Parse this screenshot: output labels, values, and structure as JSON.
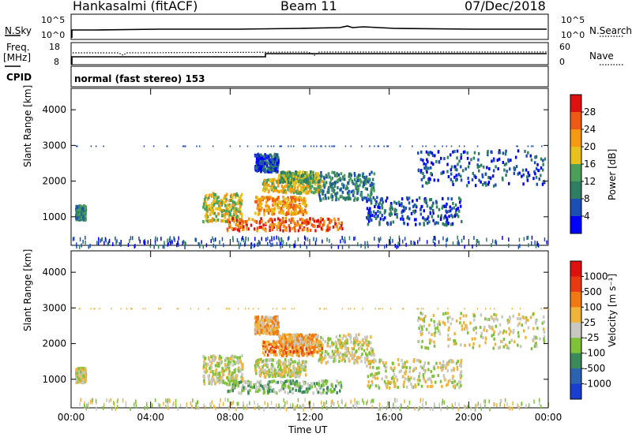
{
  "header": {
    "station": "Hankasalmi (fitACF)",
    "beam": "Beam 11",
    "date": "07/Dec/2018"
  },
  "noise_panel": {
    "left_label": "N.Sky",
    "left_ticks": [
      "10^5",
      "10^0"
    ],
    "right_label": "N.Search",
    "right_ticks": [
      "10^5",
      "10^0"
    ]
  },
  "freq_panel": {
    "left_label_1": "Freq.",
    "left_label_2": "[MHz]",
    "left_ticks": [
      "18",
      "8"
    ],
    "right_label": "Nave",
    "right_ticks": [
      "60",
      "0"
    ],
    "cpid_label": "CPID",
    "cpid_text": "normal (fast stereo) 153"
  },
  "chart_data": [
    {
      "type": "heatmap",
      "name": "power",
      "ylabel": "Slant Range [km]",
      "xlabel": "",
      "x_ticks": [
        "00:00",
        "04:00",
        "08:00",
        "12:00",
        "16:00",
        "20:00",
        "00:00"
      ],
      "x_range_hours": [
        0,
        24
      ],
      "y_ticks": [
        1000,
        2000,
        3000,
        4000
      ],
      "ylim": [
        200,
        4600
      ],
      "colorbar": {
        "label": "Power [dB]",
        "ticks": [
          "4",
          "8",
          "12",
          "16",
          "20",
          "24",
          "28"
        ],
        "colors": [
          "#0000ff",
          "#1c4fb3",
          "#2f7d62",
          "#4aa05a",
          "#e8c21a",
          "#f59a10",
          "#ee5a14",
          "#e01010"
        ]
      },
      "scatter_regions": [
        {
          "t0": 0.2,
          "t1": 0.7,
          "r0": 950,
          "r1": 1350,
          "level": 2
        },
        {
          "t0": 6.6,
          "t1": 8.6,
          "r0": 900,
          "r1": 1700,
          "level": 4
        },
        {
          "t0": 7.8,
          "t1": 13.6,
          "r0": 650,
          "r1": 1000,
          "level": 6
        },
        {
          "t0": 9.2,
          "t1": 11.8,
          "r0": 1100,
          "r1": 1600,
          "level": 5
        },
        {
          "t0": 9.6,
          "t1": 12.6,
          "r0": 1700,
          "r1": 2100,
          "level": 4
        },
        {
          "t0": 10.4,
          "t1": 12.4,
          "r0": 2000,
          "r1": 2300,
          "level": 3
        },
        {
          "t0": 12.4,
          "t1": 15.2,
          "r0": 1500,
          "r1": 2300,
          "level": 2
        },
        {
          "t0": 14.8,
          "t1": 19.6,
          "r0": 800,
          "r1": 1600,
          "level": 1
        },
        {
          "t0": 17.4,
          "t1": 23.8,
          "r0": 1900,
          "r1": 2900,
          "level": 1
        },
        {
          "t0": 9.2,
          "t1": 10.4,
          "r0": 2300,
          "r1": 2800,
          "level": 1
        }
      ]
    },
    {
      "type": "heatmap",
      "name": "velocity",
      "ylabel": "Slant Range [km]",
      "xlabel": "Time UT",
      "x_ticks": [
        "00:00",
        "04:00",
        "08:00",
        "12:00",
        "16:00",
        "20:00",
        "00:00"
      ],
      "x_range_hours": [
        0,
        24
      ],
      "y_ticks": [
        1000,
        2000,
        3000,
        4000
      ],
      "ylim": [
        200,
        4600
      ],
      "colorbar": {
        "label": "Velocity [m s⁻¹]",
        "ticks": [
          "1000",
          "500",
          "100",
          "25",
          "-25",
          "-100",
          "-500",
          "-1000"
        ],
        "colors": [
          "#1a3fd0",
          "#2d62b0",
          "#3a8a5a",
          "#7fc23a",
          "#c8c8c0",
          "#f0b43a",
          "#f07a10",
          "#e83a10",
          "#e01010"
        ]
      },
      "scatter_regions": [
        {
          "t0": 0.2,
          "t1": 0.7,
          "r0": 950,
          "r1": 1350,
          "level": 4
        },
        {
          "t0": 6.6,
          "t1": 8.6,
          "r0": 900,
          "r1": 1700,
          "level": 4
        },
        {
          "t0": 7.8,
          "t1": 13.6,
          "r0": 650,
          "r1": 1000,
          "level": 3
        },
        {
          "t0": 9.2,
          "t1": 11.8,
          "r0": 1100,
          "r1": 1600,
          "level": 4
        },
        {
          "t0": 9.6,
          "t1": 12.6,
          "r0": 1700,
          "r1": 2100,
          "level": 6
        },
        {
          "t0": 10.4,
          "t1": 12.4,
          "r0": 2000,
          "r1": 2300,
          "level": 5
        },
        {
          "t0": 12.4,
          "t1": 15.2,
          "r0": 1500,
          "r1": 2300,
          "level": 4
        },
        {
          "t0": 14.8,
          "t1": 19.6,
          "r0": 800,
          "r1": 1600,
          "level": 4
        },
        {
          "t0": 17.4,
          "t1": 23.8,
          "r0": 1900,
          "r1": 2900,
          "level": 4
        },
        {
          "t0": 9.2,
          "t1": 10.4,
          "r0": 2300,
          "r1": 2800,
          "level": 5
        }
      ]
    }
  ]
}
